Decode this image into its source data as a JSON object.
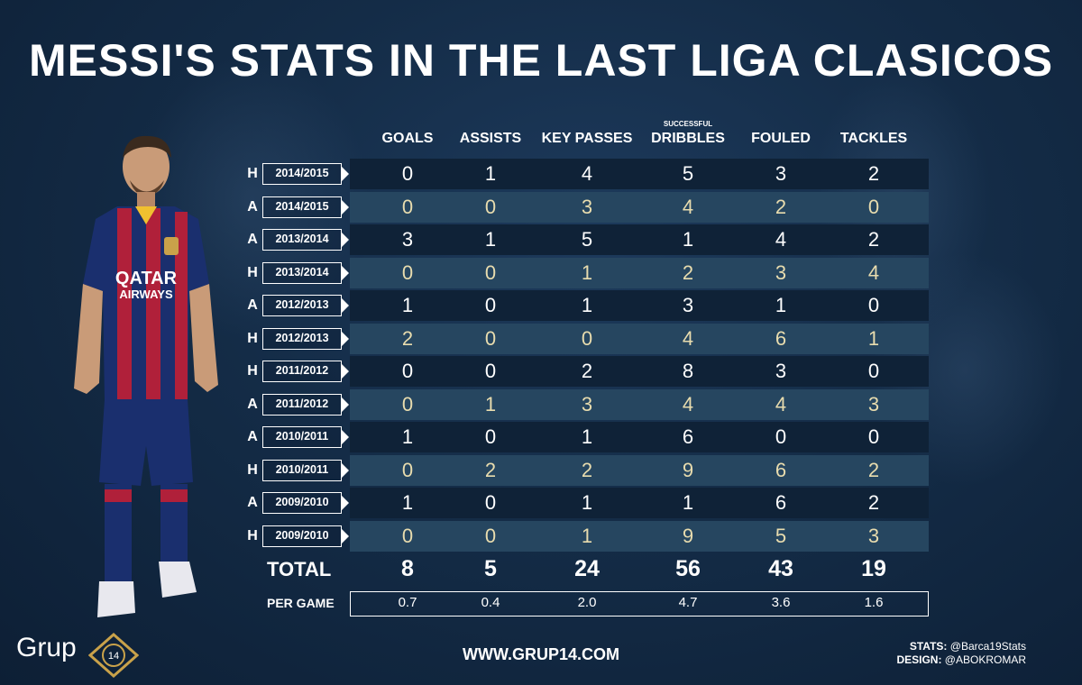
{
  "title": "MESSI'S STATS IN THE LAST LIGA CLASICOS",
  "columns": [
    {
      "label": "GOALS",
      "sub": ""
    },
    {
      "label": "ASSISTS",
      "sub": ""
    },
    {
      "label": "KEY PASSES",
      "sub": ""
    },
    {
      "label": "DRIBBLES",
      "sub": "SUCCESSFUL"
    },
    {
      "label": "FOULED",
      "sub": ""
    },
    {
      "label": "TACKLES",
      "sub": ""
    }
  ],
  "rows": [
    {
      "venue": "H",
      "season": "2014/2015",
      "values": [
        "0",
        "1",
        "4",
        "5",
        "3",
        "2"
      ]
    },
    {
      "venue": "A",
      "season": "2014/2015",
      "values": [
        "0",
        "0",
        "3",
        "4",
        "2",
        "0"
      ]
    },
    {
      "venue": "A",
      "season": "2013/2014",
      "values": [
        "3",
        "1",
        "5",
        "1",
        "4",
        "2"
      ]
    },
    {
      "venue": "H",
      "season": "2013/2014",
      "values": [
        "0",
        "0",
        "1",
        "2",
        "3",
        "4"
      ]
    },
    {
      "venue": "A",
      "season": "2012/2013",
      "values": [
        "1",
        "0",
        "1",
        "3",
        "1",
        "0"
      ]
    },
    {
      "venue": "H",
      "season": "2012/2013",
      "values": [
        "2",
        "0",
        "0",
        "4",
        "6",
        "1"
      ]
    },
    {
      "venue": "H",
      "season": "2011/2012",
      "values": [
        "0",
        "0",
        "2",
        "8",
        "3",
        "0"
      ]
    },
    {
      "venue": "A",
      "season": "2011/2012",
      "values": [
        "0",
        "1",
        "3",
        "4",
        "4",
        "3"
      ]
    },
    {
      "venue": "A",
      "season": "2010/2011",
      "values": [
        "1",
        "0",
        "1",
        "6",
        "0",
        "0"
      ]
    },
    {
      "venue": "H",
      "season": "2010/2011",
      "values": [
        "0",
        "2",
        "2",
        "9",
        "6",
        "2"
      ]
    },
    {
      "venue": "A",
      "season": "2009/2010",
      "values": [
        "1",
        "0",
        "1",
        "1",
        "6",
        "2"
      ]
    },
    {
      "venue": "H",
      "season": "2009/2010",
      "values": [
        "0",
        "0",
        "1",
        "9",
        "5",
        "3"
      ]
    }
  ],
  "total": {
    "label": "TOTAL",
    "values": [
      "8",
      "5",
      "24",
      "56",
      "43",
      "19"
    ]
  },
  "per_game": {
    "label": "PER GAME",
    "values": [
      "0.7",
      "0.4",
      "2.0",
      "4.7",
      "3.6",
      "1.6"
    ]
  },
  "footer": {
    "site": "WWW.GRUP14.COM",
    "stats_label": "STATS:",
    "stats_value": "@Barca19Stats",
    "design_label": "DESIGN:",
    "design_value": "@ABOKROMAR",
    "logo_text": "Grup",
    "logo_number": "14"
  },
  "shirt": {
    "sponsor_line1": "QATAR",
    "sponsor_line2": "AIRWAYS"
  },
  "colors": {
    "background": "#142c47",
    "row_dark": "#0f2237",
    "row_light": "#264660",
    "light_row_text": "#e8dcae",
    "logo_gold": "#c9a24a"
  }
}
